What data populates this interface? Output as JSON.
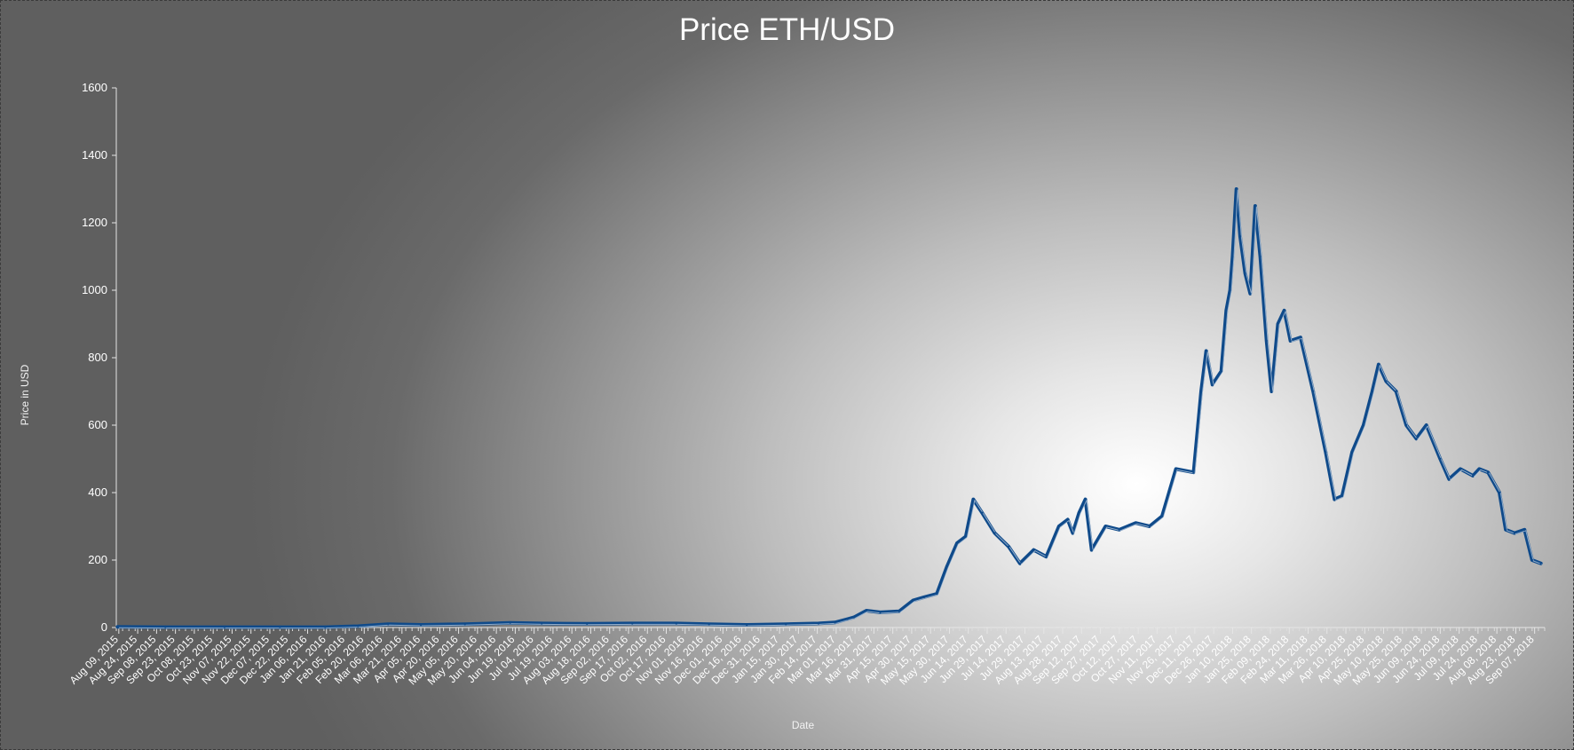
{
  "chart_data": {
    "type": "line",
    "title": "Price ETH/USD",
    "xlabel": "Date",
    "ylabel": "Price in USD",
    "ylim": [
      0,
      1600
    ],
    "yticks": [
      0,
      200,
      400,
      600,
      800,
      1000,
      1200,
      1400,
      1600
    ],
    "xlim": [
      "2015-08-07",
      "2018-09-15"
    ],
    "x_tick_labels": [
      "Aug 09, 2015",
      "Aug 24, 2015",
      "Sep 08, 2015",
      "Sep 23, 2015",
      "Oct 08, 2015",
      "Oct 23, 2015",
      "Nov 07, 2015",
      "Nov 22, 2015",
      "Dec 07, 2015",
      "Dec 22, 2015",
      "Jan 06, 2016",
      "Jan 21, 2016",
      "Feb 05, 2016",
      "Feb 20, 2016",
      "Mar 06, 2016",
      "Mar 21, 2016",
      "Apr 05, 2016",
      "Apr 20, 2016",
      "May 05, 2016",
      "May 20, 2016",
      "Jun 04, 2016",
      "Jun 19, 2016",
      "Jul 04, 2016",
      "Jul 19, 2016",
      "Aug 03, 2016",
      "Aug 18, 2016",
      "Sep 02, 2016",
      "Sep 17, 2016",
      "Oct 02, 2016",
      "Oct 17, 2016",
      "Nov 01, 2016",
      "Nov 16, 2016",
      "Dec 01, 2016",
      "Dec 16, 2016",
      "Dec 31, 2016",
      "Jan 15, 2017",
      "Jan 30, 2017",
      "Feb 14, 2017",
      "Mar 01, 2017",
      "Mar 16, 2017",
      "Mar 31, 2017",
      "Apr 15, 2017",
      "Apr 30, 2017",
      "May 15, 2017",
      "May 30, 2017",
      "Jun 14, 2017",
      "Jun 29, 2017",
      "Jul 14, 2017",
      "Jul 29, 2017",
      "Aug 13, 2017",
      "Aug 28, 2017",
      "Sep 12, 2017",
      "Sep 27, 2017",
      "Oct 12, 2017",
      "Oct 27, 2017",
      "Nov 11, 2017",
      "Nov 26, 2017",
      "Dec 11, 2017",
      "Dec 26, 2017",
      "Jan 10, 2018",
      "Jan 25, 2018",
      "Feb 09, 2018",
      "Feb 24, 2018",
      "Mar 11, 2018",
      "Mar 26, 2018",
      "Apr 10, 2018",
      "Apr 25, 2018",
      "May 10, 2018",
      "May 25, 2018",
      "Jun 09, 2018",
      "Jun 24, 2018",
      "Jul 09, 2018",
      "Jul 24, 2018",
      "Aug 08, 2018",
      "Aug 23, 2018",
      "Sep 07, 2018"
    ],
    "grid": false,
    "legend": "none",
    "line_color": "#0f4a8a",
    "series": [
      {
        "x": [
          "2015-08-08",
          "2015-09-15",
          "2015-11-01",
          "2015-12-15",
          "2016-01-20",
          "2016-02-15",
          "2016-03-10",
          "2016-04-05",
          "2016-05-10",
          "2016-06-15",
          "2016-07-10",
          "2016-08-15",
          "2016-09-20",
          "2016-10-25",
          "2016-11-20",
          "2016-12-20",
          "2017-01-20",
          "2017-02-15",
          "2017-02-28",
          "2017-03-10",
          "2017-03-15",
          "2017-03-25",
          "2017-04-05",
          "2017-04-20",
          "2017-05-01",
          "2017-05-10",
          "2017-05-20",
          "2017-05-28",
          "2017-06-05",
          "2017-06-12",
          "2017-06-18",
          "2017-06-25",
          "2017-07-05",
          "2017-07-16",
          "2017-07-25",
          "2017-08-05",
          "2017-08-15",
          "2017-08-25",
          "2017-09-01",
          "2017-09-05",
          "2017-09-10",
          "2017-09-15",
          "2017-09-20",
          "2017-10-01",
          "2017-10-12",
          "2017-10-25",
          "2017-11-05",
          "2017-11-15",
          "2017-11-26",
          "2017-12-10",
          "2017-12-16",
          "2017-12-20",
          "2017-12-25",
          "2018-01-01",
          "2018-01-05",
          "2018-01-08",
          "2018-01-10",
          "2018-01-13",
          "2018-01-16",
          "2018-01-20",
          "2018-01-24",
          "2018-01-28",
          "2018-02-01",
          "2018-02-06",
          "2018-02-10",
          "2018-02-15",
          "2018-02-20",
          "2018-02-25",
          "2018-03-05",
          "2018-03-15",
          "2018-03-25",
          "2018-04-01",
          "2018-04-07",
          "2018-04-15",
          "2018-04-24",
          "2018-05-01",
          "2018-05-06",
          "2018-05-12",
          "2018-05-20",
          "2018-05-28",
          "2018-06-05",
          "2018-06-13",
          "2018-06-24",
          "2018-07-01",
          "2018-07-10",
          "2018-07-20",
          "2018-07-25",
          "2018-08-01",
          "2018-08-10",
          "2018-08-15",
          "2018-08-22",
          "2018-08-30",
          "2018-09-05",
          "2018-09-12"
        ],
        "y": [
          2,
          1,
          1,
          1,
          1,
          4,
          10,
          8,
          10,
          14,
          12,
          11,
          12,
          12,
          10,
          8,
          10,
          12,
          15,
          25,
          30,
          50,
          45,
          48,
          80,
          90,
          100,
          180,
          250,
          270,
          380,
          340,
          280,
          240,
          190,
          230,
          210,
          300,
          320,
          280,
          340,
          380,
          230,
          300,
          290,
          310,
          300,
          330,
          470,
          460,
          700,
          820,
          720,
          760,
          940,
          1000,
          1100,
          1300,
          1160,
          1050,
          990,
          1250,
          1100,
          850,
          700,
          900,
          940,
          850,
          860,
          700,
          520,
          380,
          390,
          520,
          600,
          700,
          780,
          730,
          700,
          600,
          560,
          600,
          500,
          440,
          470,
          450,
          470,
          460,
          400,
          290,
          280,
          290,
          200,
          190
        ]
      }
    ]
  }
}
